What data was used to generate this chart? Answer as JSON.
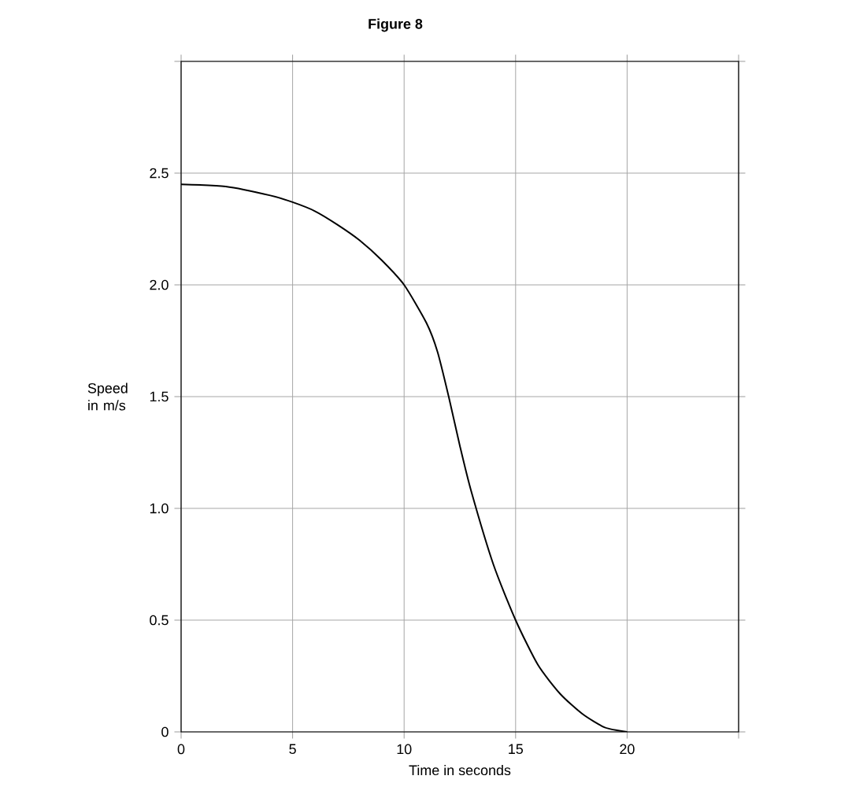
{
  "chart_data": {
    "type": "line",
    "title": "Figure 8",
    "xlabel": "Time in seconds",
    "ylabel": "Speed in m/s",
    "x": [
      0,
      2,
      4,
      5,
      6,
      7,
      8,
      9,
      10,
      11,
      11.5,
      12,
      12.5,
      13,
      14,
      15,
      16,
      17,
      18,
      19,
      20
    ],
    "series": [
      {
        "color": "#000000",
        "values": [
          2.45,
          2.44,
          2.4,
          2.37,
          2.33,
          2.27,
          2.2,
          2.11,
          2.0,
          1.83,
          1.7,
          1.5,
          1.28,
          1.08,
          0.75,
          0.5,
          0.3,
          0.17,
          0.08,
          0.02,
          0
        ]
      }
    ],
    "xlim": [
      0,
      25
    ],
    "ylim": [
      0,
      3
    ],
    "xticks": [
      0,
      5,
      10,
      15,
      20,
      {
        "value": 25,
        "label": null
      }
    ],
    "yticks": [
      0,
      {
        "value": 0.5,
        "label": "0.5"
      },
      {
        "value": 1,
        "label": "1.0"
      },
      {
        "value": 1.5,
        "label": "1.5"
      },
      {
        "value": 2,
        "label": "2.0"
      },
      {
        "value": 2.5,
        "label": "2.5"
      },
      {
        "value": 3,
        "label": null
      }
    ],
    "grid": true,
    "marker": "none",
    "line_style": "solid"
  }
}
